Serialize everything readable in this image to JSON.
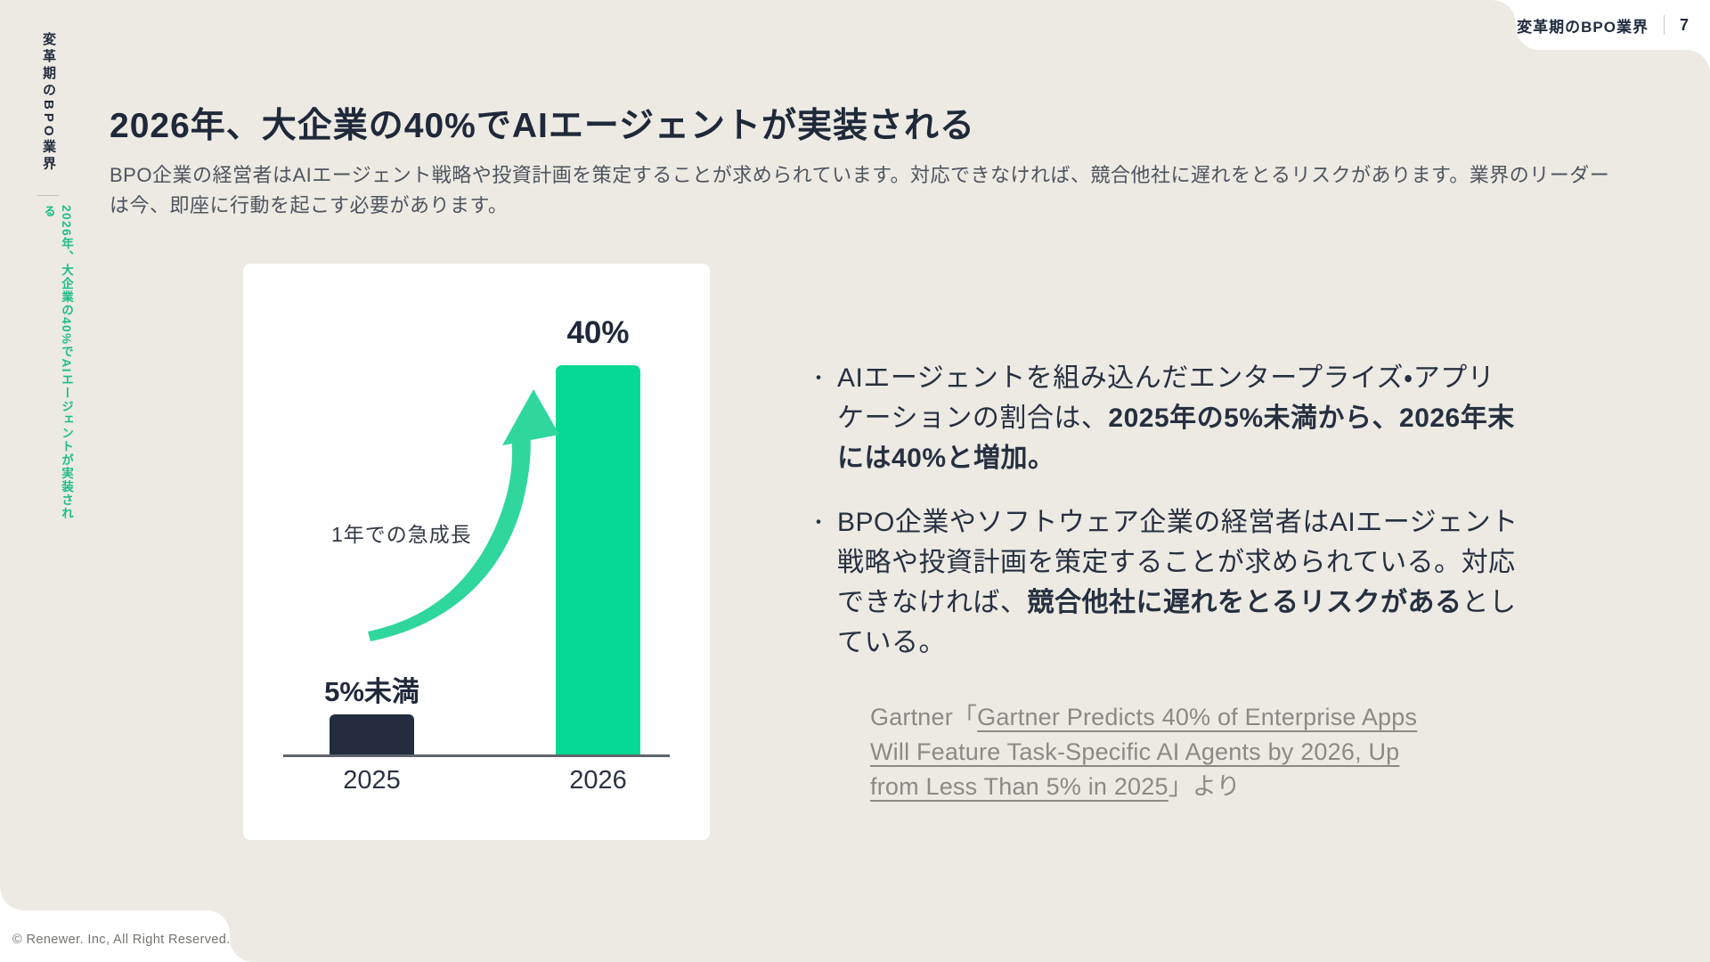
{
  "slide": {
    "header": {
      "label": "変革期のBPO業界",
      "page": "7"
    },
    "sidebar": {
      "chapter": "変革期のBPO業界",
      "section": "2026年、大企業の40%でAIエージェントが実装される"
    },
    "title": "2026年、大企業の40%でAIエージェントが実装される",
    "lead": "BPO企業の経営者はAIエージェント戦略や投資計画を策定することが求められています。対応できなければ、競合他社に遅れをとるリスクがあります。業界のリーダーは今、即座に行動を起こす必要があります。",
    "footer": "© Renewer. Inc, All Right Reserved."
  },
  "chart_data": {
    "type": "bar",
    "categories": [
      "2025",
      "2026"
    ],
    "values": [
      5,
      40
    ],
    "value_labels": [
      "5%未満",
      "40%"
    ],
    "annotation": "1年での急成長",
    "unit": "%",
    "ylim": [
      0,
      45
    ],
    "grid": false,
    "bar_colors": [
      "#232D3F",
      "#05D993"
    ],
    "title": "",
    "xlabel": "",
    "ylabel": ""
  },
  "bullet_marker": "・",
  "bullets": [
    {
      "segments": [
        {
          "t": "AIエージェントを組み込んだエンタープライズ・アプリケーションの割合は、",
          "b": false
        },
        {
          "t": "2025年の5%未満から、2026年末には40%と増加。",
          "b": true
        }
      ]
    },
    {
      "segments": [
        {
          "t": "BPO企業やソフトウェア企業の経営者はAIエージェント戦略や投資計画を策定することが求められている。対応できなければ、",
          "b": false
        },
        {
          "t": "競合他社に遅れをとるリスクがある",
          "b": true
        },
        {
          "t": "としている。",
          "b": false
        }
      ]
    }
  ],
  "citation": {
    "segments": [
      {
        "t": "Gartner「",
        "u": false
      },
      {
        "t": "Gartner Predicts 40% of Enterprise Apps Will Feature Task-Specific AI Agents by 2026, Up from Less Than 5% in 2025",
        "u": true
      },
      {
        "t": "」より",
        "u": false
      }
    ]
  },
  "colors": {
    "background": "#ECEAE3",
    "card": "#FFFFFF",
    "navy": "#222C3E",
    "accent_green": "#05D993",
    "arrow_green": "#2FD79C",
    "sidebar_green": "#1FBD8A",
    "citation_gray": "#8A8A85"
  }
}
